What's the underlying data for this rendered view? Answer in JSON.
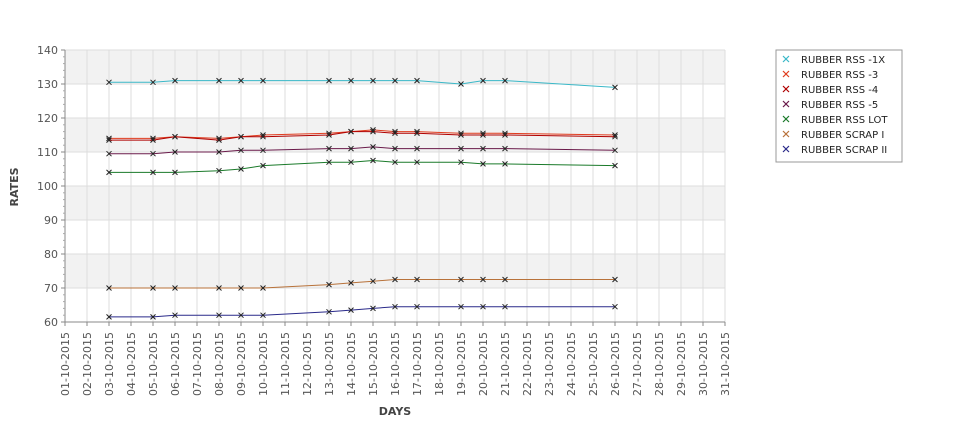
{
  "chart_data": {
    "type": "line",
    "title": "",
    "xlabel": "DAYS",
    "ylabel": "RATES",
    "ylim": [
      60,
      140
    ],
    "y_ticks": [
      60,
      70,
      80,
      90,
      100,
      110,
      120,
      130,
      140
    ],
    "x_categories": [
      "01-10-2015",
      "02-10-2015",
      "03-10-2015",
      "04-10-2015",
      "05-10-2015",
      "06-10-2015",
      "07-10-2015",
      "08-10-2015",
      "09-10-2015",
      "10-10-2015",
      "11-10-2015",
      "12-10-2015",
      "13-10-2015",
      "14-10-2015",
      "15-10-2015",
      "16-10-2015",
      "17-10-2015",
      "18-10-2015",
      "19-10-2015",
      "20-10-2015",
      "21-10-2015",
      "22-10-2015",
      "23-10-2015",
      "24-10-2015",
      "25-10-2015",
      "26-10-2015",
      "27-10-2015",
      "28-10-2015",
      "29-10-2015",
      "30-10-2015",
      "31-10-2015"
    ],
    "grid": true,
    "legend_position": "right",
    "series": [
      {
        "name": "RUBBER RSS -1X",
        "color": "#3ab8c8",
        "points": [
          [
            "03-10-2015",
            130.5
          ],
          [
            "05-10-2015",
            130.5
          ],
          [
            "06-10-2015",
            131
          ],
          [
            "08-10-2015",
            131
          ],
          [
            "09-10-2015",
            131
          ],
          [
            "10-10-2015",
            131
          ],
          [
            "13-10-2015",
            131
          ],
          [
            "14-10-2015",
            131
          ],
          [
            "15-10-2015",
            131
          ],
          [
            "16-10-2015",
            131
          ],
          [
            "17-10-2015",
            131
          ],
          [
            "19-10-2015",
            130
          ],
          [
            "20-10-2015",
            131
          ],
          [
            "21-10-2015",
            131
          ],
          [
            "26-10-2015",
            129
          ]
        ]
      },
      {
        "name": "RUBBER RSS -3",
        "color": "#e03c1e",
        "points": [
          [
            "03-10-2015",
            114
          ],
          [
            "05-10-2015",
            114
          ],
          [
            "06-10-2015",
            114.5
          ],
          [
            "08-10-2015",
            114
          ],
          [
            "09-10-2015",
            114.5
          ],
          [
            "10-10-2015",
            115
          ],
          [
            "13-10-2015",
            115.5
          ],
          [
            "14-10-2015",
            116
          ],
          [
            "15-10-2015",
            116.5
          ],
          [
            "16-10-2015",
            116
          ],
          [
            "17-10-2015",
            116
          ],
          [
            "19-10-2015",
            115.5
          ],
          [
            "20-10-2015",
            115.5
          ],
          [
            "21-10-2015",
            115.5
          ],
          [
            "26-10-2015",
            115
          ]
        ]
      },
      {
        "name": "RUBBER RSS -4",
        "color": "#b00000",
        "points": [
          [
            "03-10-2015",
            113.5
          ],
          [
            "05-10-2015",
            113.5
          ],
          [
            "06-10-2015",
            114.5
          ],
          [
            "08-10-2015",
            113.5
          ],
          [
            "09-10-2015",
            114.5
          ],
          [
            "10-10-2015",
            114.5
          ],
          [
            "13-10-2015",
            115
          ],
          [
            "14-10-2015",
            116
          ],
          [
            "15-10-2015",
            116
          ],
          [
            "16-10-2015",
            115.5
          ],
          [
            "17-10-2015",
            115.5
          ],
          [
            "19-10-2015",
            115
          ],
          [
            "20-10-2015",
            115
          ],
          [
            "21-10-2015",
            115
          ],
          [
            "26-10-2015",
            114.5
          ]
        ]
      },
      {
        "name": "RUBBER RSS -5",
        "color": "#6a1a4a",
        "points": [
          [
            "03-10-2015",
            109.5
          ],
          [
            "05-10-2015",
            109.5
          ],
          [
            "06-10-2015",
            110
          ],
          [
            "08-10-2015",
            110
          ],
          [
            "09-10-2015",
            110.5
          ],
          [
            "10-10-2015",
            110.5
          ],
          [
            "13-10-2015",
            111
          ],
          [
            "14-10-2015",
            111
          ],
          [
            "15-10-2015",
            111.5
          ],
          [
            "16-10-2015",
            111
          ],
          [
            "17-10-2015",
            111
          ],
          [
            "19-10-2015",
            111
          ],
          [
            "20-10-2015",
            111
          ],
          [
            "21-10-2015",
            111
          ],
          [
            "26-10-2015",
            110.5
          ]
        ]
      },
      {
        "name": "RUBBER RSS LOT",
        "color": "#1a7a2a",
        "points": [
          [
            "03-10-2015",
            104
          ],
          [
            "05-10-2015",
            104
          ],
          [
            "06-10-2015",
            104
          ],
          [
            "08-10-2015",
            104.5
          ],
          [
            "09-10-2015",
            105
          ],
          [
            "10-10-2015",
            106
          ],
          [
            "13-10-2015",
            107
          ],
          [
            "14-10-2015",
            107
          ],
          [
            "15-10-2015",
            107.5
          ],
          [
            "16-10-2015",
            107
          ],
          [
            "17-10-2015",
            107
          ],
          [
            "19-10-2015",
            107
          ],
          [
            "20-10-2015",
            106.5
          ],
          [
            "21-10-2015",
            106.5
          ],
          [
            "26-10-2015",
            106
          ]
        ]
      },
      {
        "name": "RUBBER SCRAP I",
        "color": "#b8723a",
        "points": [
          [
            "03-10-2015",
            70
          ],
          [
            "05-10-2015",
            70
          ],
          [
            "06-10-2015",
            70
          ],
          [
            "08-10-2015",
            70
          ],
          [
            "09-10-2015",
            70
          ],
          [
            "10-10-2015",
            70
          ],
          [
            "13-10-2015",
            71
          ],
          [
            "14-10-2015",
            71.5
          ],
          [
            "15-10-2015",
            72
          ],
          [
            "16-10-2015",
            72.5
          ],
          [
            "17-10-2015",
            72.5
          ],
          [
            "19-10-2015",
            72.5
          ],
          [
            "20-10-2015",
            72.5
          ],
          [
            "21-10-2015",
            72.5
          ],
          [
            "26-10-2015",
            72.5
          ]
        ]
      },
      {
        "name": "RUBBER SCRAP II",
        "color": "#2a2a8a",
        "points": [
          [
            "03-10-2015",
            61.5
          ],
          [
            "05-10-2015",
            61.5
          ],
          [
            "06-10-2015",
            62
          ],
          [
            "08-10-2015",
            62
          ],
          [
            "09-10-2015",
            62
          ],
          [
            "10-10-2015",
            62
          ],
          [
            "13-10-2015",
            63
          ],
          [
            "14-10-2015",
            63.5
          ],
          [
            "15-10-2015",
            64
          ],
          [
            "16-10-2015",
            64.5
          ],
          [
            "17-10-2015",
            64.5
          ],
          [
            "19-10-2015",
            64.5
          ],
          [
            "20-10-2015",
            64.5
          ],
          [
            "21-10-2015",
            64.5
          ],
          [
            "26-10-2015",
            64.5
          ]
        ]
      }
    ]
  }
}
